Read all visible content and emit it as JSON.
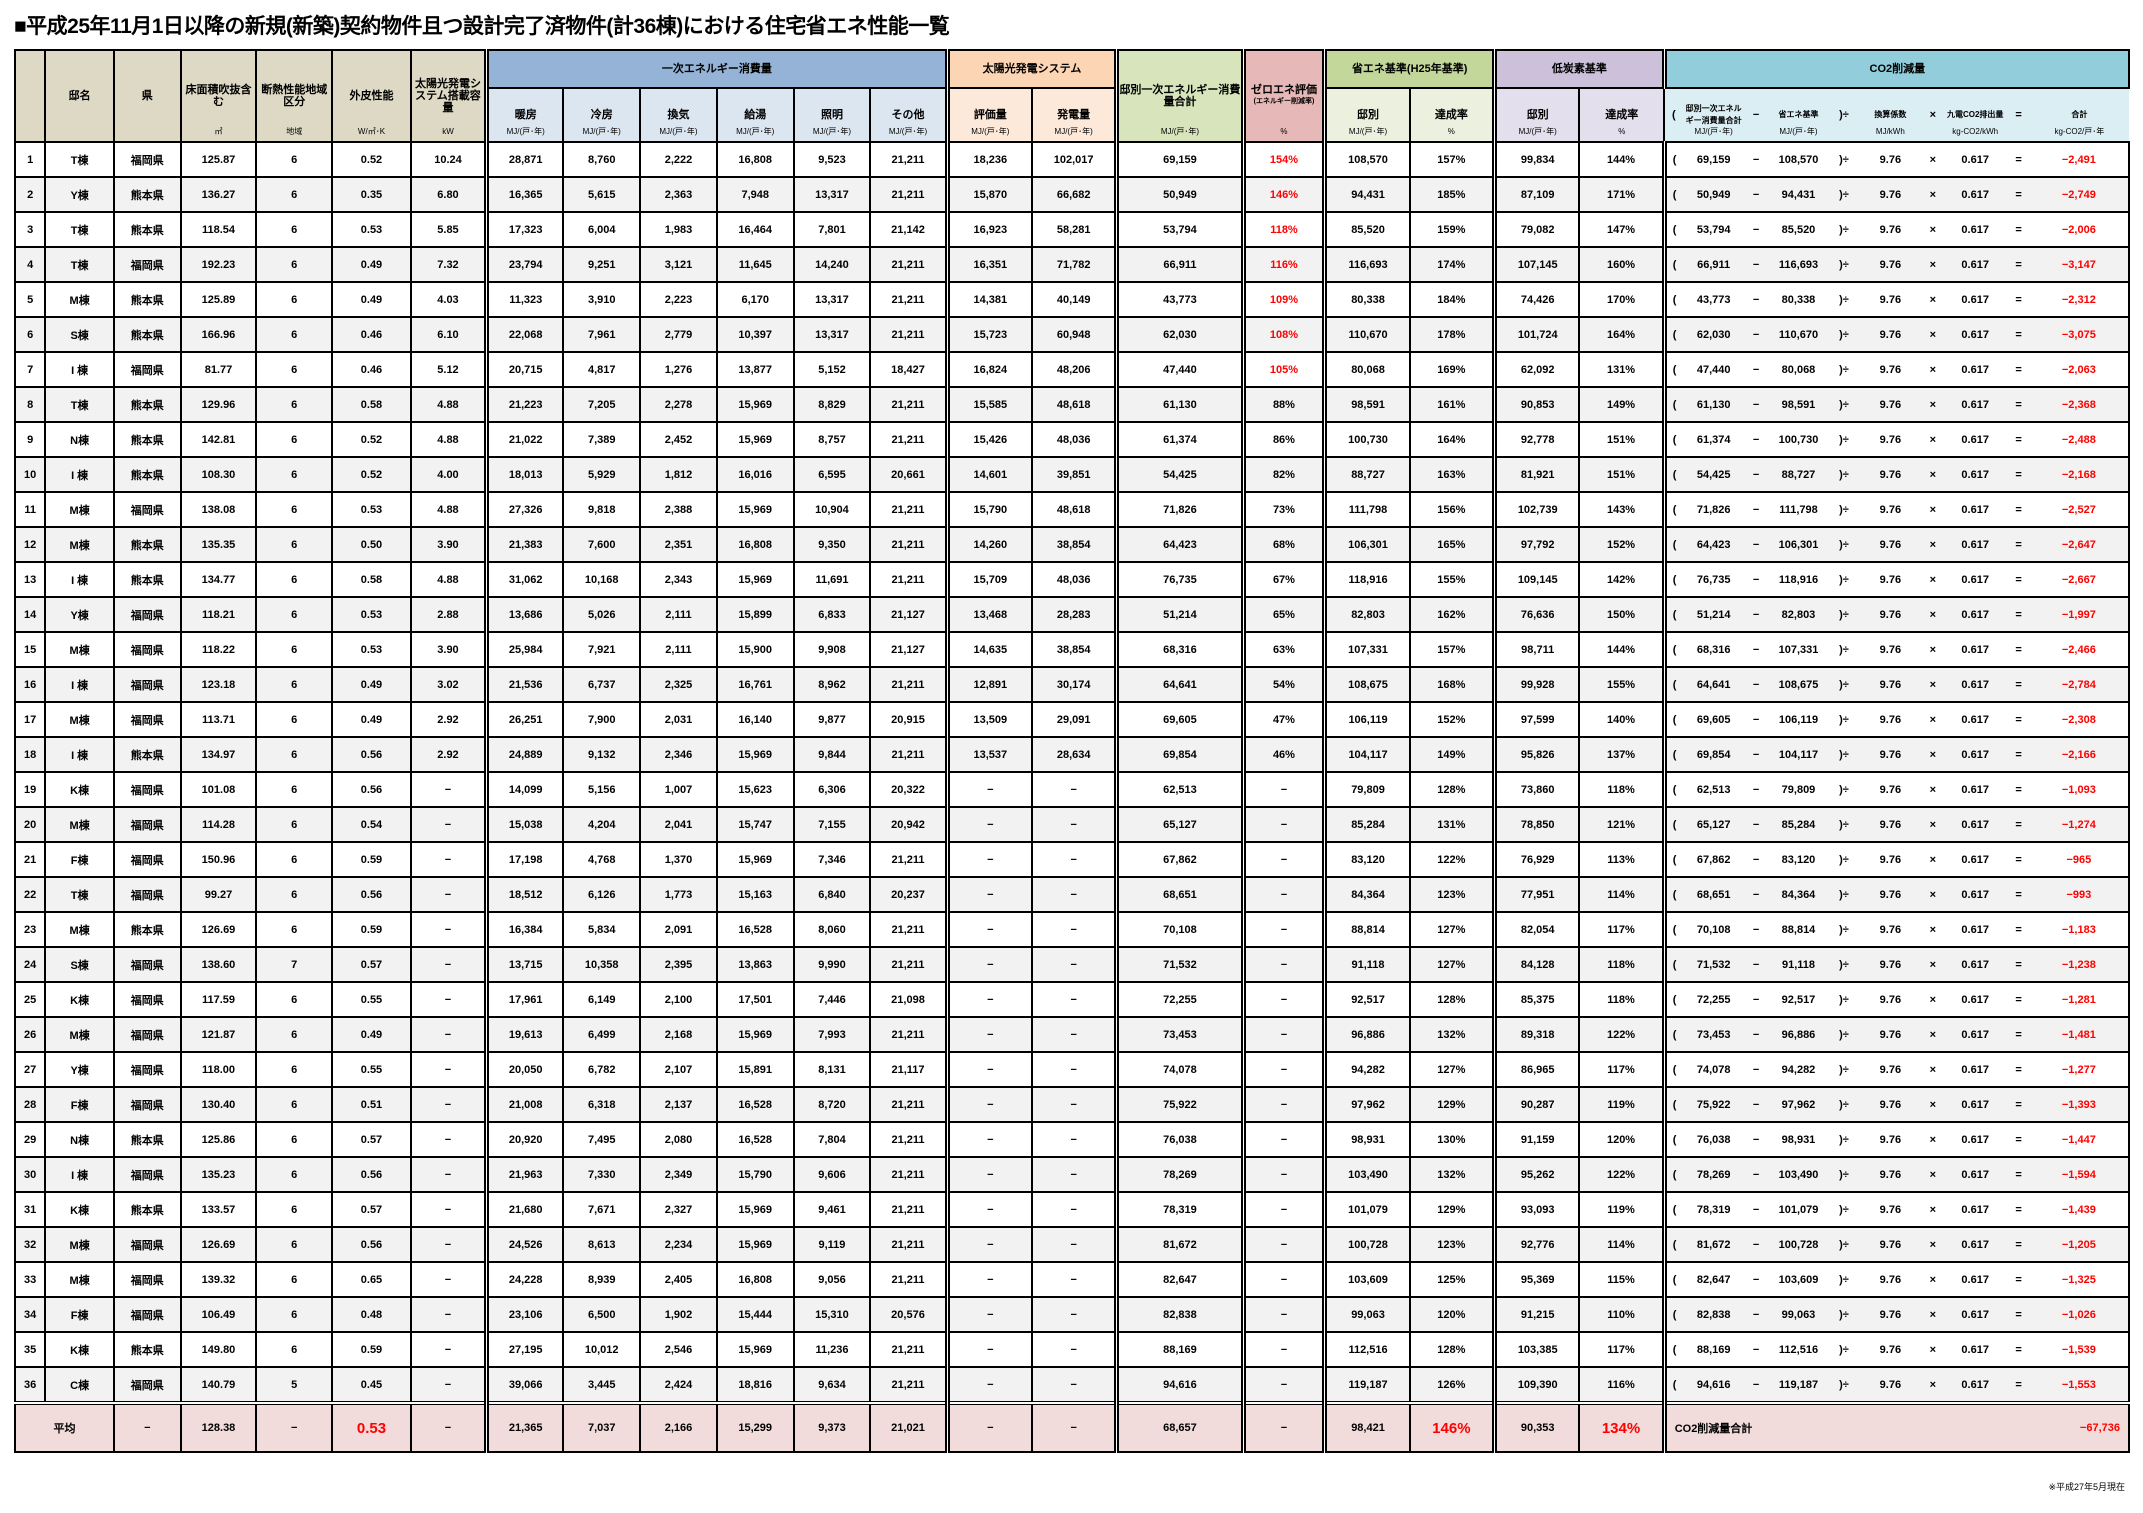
{
  "title": "■平成25年11月1日以降の新規(新築)契約物件且つ設計完了済物件(計36棟)における住宅省エネ性能一覧",
  "colors": {
    "accent_red": "#ff0000",
    "primary_energy": "#95b3d7",
    "solar": "#fcd5b4",
    "total": "#d8e4bc",
    "zero_energy": "#e6b8b7",
    "energy_standard": "#c4d79b",
    "low_carbon": "#ccc0da",
    "co2": "#92cddc",
    "average_row": "#f2dcdb"
  },
  "headers": {
    "no": "",
    "name": "邸名",
    "pref": "県",
    "area": {
      "label": "床面積吹抜含む",
      "unit": "㎡"
    },
    "zone": {
      "label": "断熱性能地域区分",
      "unit": "地域"
    },
    "ua": {
      "label": "外皮性能",
      "unit": "W/㎡･K"
    },
    "pv": {
      "label": "太陽光発電システム搭載容量",
      "unit": "kW"
    },
    "primary": {
      "label": "一次エネルギー消費量",
      "cols": [
        {
          "label": "暖房",
          "unit": "MJ/(戸･年)"
        },
        {
          "label": "冷房",
          "unit": "MJ/(戸･年)"
        },
        {
          "label": "換気",
          "unit": "MJ/(戸･年)"
        },
        {
          "label": "給湯",
          "unit": "MJ/(戸･年)"
        },
        {
          "label": "照明",
          "unit": "MJ/(戸･年)"
        },
        {
          "label": "その他",
          "unit": "MJ/(戸･年)"
        }
      ]
    },
    "solar": {
      "label": "太陽光発電システム",
      "cols": [
        {
          "label": "評価量",
          "unit": "MJ/(戸･年)"
        },
        {
          "label": "発電量",
          "unit": "MJ/(戸･年)"
        }
      ]
    },
    "total": {
      "label": "邸別一次エネルギー消費量合計",
      "unit": "MJ/(戸･年)"
    },
    "zero": {
      "label": "ゼロエネ評価",
      "sub": "(エネルギー削減率)",
      "unit": "%"
    },
    "std": {
      "label": "省エネ基準(H25年基準)",
      "cols": [
        {
          "label": "邸別",
          "unit": "MJ/(戸･年)"
        },
        {
          "label": "達成率",
          "unit": "%"
        }
      ]
    },
    "low": {
      "label": "低炭素基準",
      "cols": [
        {
          "label": "邸別",
          "unit": "MJ/(戸･年)"
        },
        {
          "label": "達成率",
          "unit": "%"
        }
      ]
    },
    "co2": {
      "label": "CO2削減量",
      "cols": [
        {
          "label": "邸別一次エネルギー消費量合計",
          "unit": "MJ/(戸･年)"
        },
        {
          "label": "省エネ基準",
          "unit": "MJ/(戸･年)"
        },
        {
          "label": "換算係数",
          "unit": "MJ/kWh"
        },
        {
          "label": "九電CO2排出量",
          "unit": "kg-CO2/kWh"
        },
        {
          "label": "合計",
          "unit": "kg-CO2/戸･年"
        }
      ]
    }
  },
  "co2_formula": {
    "open": "(",
    "minus": "−",
    "close_div": ")÷",
    "factor": "9.76",
    "times": "×",
    "emission": "0.617",
    "equals": "="
  },
  "rows": [
    [
      "1",
      "T棟",
      "福岡県",
      "125.87",
      "6",
      "0.52",
      "10.24",
      "28,871",
      "8,760",
      "2,222",
      "16,808",
      "9,523",
      "21,211",
      "18,236",
      "102,017",
      "69,159",
      "154%",
      "108,570",
      "157%",
      "99,834",
      "144%",
      "−2,491"
    ],
    [
      "2",
      "Y棟",
      "熊本県",
      "136.27",
      "6",
      "0.35",
      "6.80",
      "16,365",
      "5,615",
      "2,363",
      "7,948",
      "13,317",
      "21,211",
      "15,870",
      "66,682",
      "50,949",
      "146%",
      "94,431",
      "185%",
      "87,109",
      "171%",
      "−2,749"
    ],
    [
      "3",
      "T棟",
      "熊本県",
      "118.54",
      "6",
      "0.53",
      "5.85",
      "17,323",
      "6,004",
      "1,983",
      "16,464",
      "7,801",
      "21,142",
      "16,923",
      "58,281",
      "53,794",
      "118%",
      "85,520",
      "159%",
      "79,082",
      "147%",
      "−2,006"
    ],
    [
      "4",
      "T棟",
      "福岡県",
      "192.23",
      "6",
      "0.49",
      "7.32",
      "23,794",
      "9,251",
      "3,121",
      "11,645",
      "14,240",
      "21,211",
      "16,351",
      "71,782",
      "66,911",
      "116%",
      "116,693",
      "174%",
      "107,145",
      "160%",
      "−3,147"
    ],
    [
      "5",
      "M棟",
      "熊本県",
      "125.89",
      "6",
      "0.49",
      "4.03",
      "11,323",
      "3,910",
      "2,223",
      "6,170",
      "13,317",
      "21,211",
      "14,381",
      "40,149",
      "43,773",
      "109%",
      "80,338",
      "184%",
      "74,426",
      "170%",
      "−2,312"
    ],
    [
      "6",
      "S棟",
      "熊本県",
      "166.96",
      "6",
      "0.46",
      "6.10",
      "22,068",
      "7,961",
      "2,779",
      "10,397",
      "13,317",
      "21,211",
      "15,723",
      "60,948",
      "62,030",
      "108%",
      "110,670",
      "178%",
      "101,724",
      "164%",
      "−3,075"
    ],
    [
      "7",
      "I 棟",
      "福岡県",
      "81.77",
      "6",
      "0.46",
      "5.12",
      "20,715",
      "4,817",
      "1,276",
      "13,877",
      "5,152",
      "18,427",
      "16,824",
      "48,206",
      "47,440",
      "105%",
      "80,068",
      "169%",
      "62,092",
      "131%",
      "−2,063"
    ],
    [
      "8",
      "T棟",
      "熊本県",
      "129.96",
      "6",
      "0.58",
      "4.88",
      "21,223",
      "7,205",
      "2,278",
      "15,969",
      "8,829",
      "21,211",
      "15,585",
      "48,618",
      "61,130",
      "88%",
      "98,591",
      "161%",
      "90,853",
      "149%",
      "−2,368"
    ],
    [
      "9",
      "N棟",
      "熊本県",
      "142.81",
      "6",
      "0.52",
      "4.88",
      "21,022",
      "7,389",
      "2,452",
      "15,969",
      "8,757",
      "21,211",
      "15,426",
      "48,036",
      "61,374",
      "86%",
      "100,730",
      "164%",
      "92,778",
      "151%",
      "−2,488"
    ],
    [
      "10",
      "I 棟",
      "熊本県",
      "108.30",
      "6",
      "0.52",
      "4.00",
      "18,013",
      "5,929",
      "1,812",
      "16,016",
      "6,595",
      "20,661",
      "14,601",
      "39,851",
      "54,425",
      "82%",
      "88,727",
      "163%",
      "81,921",
      "151%",
      "−2,168"
    ],
    [
      "11",
      "M棟",
      "福岡県",
      "138.08",
      "6",
      "0.53",
      "4.88",
      "27,326",
      "9,818",
      "2,388",
      "15,969",
      "10,904",
      "21,211",
      "15,790",
      "48,618",
      "71,826",
      "73%",
      "111,798",
      "156%",
      "102,739",
      "143%",
      "−2,527"
    ],
    [
      "12",
      "M棟",
      "熊本県",
      "135.35",
      "6",
      "0.50",
      "3.90",
      "21,383",
      "7,600",
      "2,351",
      "16,808",
      "9,350",
      "21,211",
      "14,260",
      "38,854",
      "64,423",
      "68%",
      "106,301",
      "165%",
      "97,792",
      "152%",
      "−2,647"
    ],
    [
      "13",
      "I 棟",
      "熊本県",
      "134.77",
      "6",
      "0.58",
      "4.88",
      "31,062",
      "10,168",
      "2,343",
      "15,969",
      "11,691",
      "21,211",
      "15,709",
      "48,036",
      "76,735",
      "67%",
      "118,916",
      "155%",
      "109,145",
      "142%",
      "−2,667"
    ],
    [
      "14",
      "Y棟",
      "福岡県",
      "118.21",
      "6",
      "0.53",
      "2.88",
      "13,686",
      "5,026",
      "2,111",
      "15,899",
      "6,833",
      "21,127",
      "13,468",
      "28,283",
      "51,214",
      "65%",
      "82,803",
      "162%",
      "76,636",
      "150%",
      "−1,997"
    ],
    [
      "15",
      "M棟",
      "福岡県",
      "118.22",
      "6",
      "0.53",
      "3.90",
      "25,984",
      "7,921",
      "2,111",
      "15,900",
      "9,908",
      "21,127",
      "14,635",
      "38,854",
      "68,316",
      "63%",
      "107,331",
      "157%",
      "98,711",
      "144%",
      "−2,466"
    ],
    [
      "16",
      "I 棟",
      "福岡県",
      "123.18",
      "6",
      "0.49",
      "3.02",
      "21,536",
      "6,737",
      "2,325",
      "16,761",
      "8,962",
      "21,211",
      "12,891",
      "30,174",
      "64,641",
      "54%",
      "108,675",
      "168%",
      "99,928",
      "155%",
      "−2,784"
    ],
    [
      "17",
      "M棟",
      "福岡県",
      "113.71",
      "6",
      "0.49",
      "2.92",
      "26,251",
      "7,900",
      "2,031",
      "16,140",
      "9,877",
      "20,915",
      "13,509",
      "29,091",
      "69,605",
      "47%",
      "106,119",
      "152%",
      "97,599",
      "140%",
      "−2,308"
    ],
    [
      "18",
      "I 棟",
      "熊本県",
      "134.97",
      "6",
      "0.56",
      "2.92",
      "24,889",
      "9,132",
      "2,346",
      "15,969",
      "9,844",
      "21,211",
      "13,537",
      "28,634",
      "69,854",
      "46%",
      "104,117",
      "149%",
      "95,826",
      "137%",
      "−2,166"
    ],
    [
      "19",
      "K棟",
      "福岡県",
      "101.08",
      "6",
      "0.56",
      "−",
      "14,099",
      "5,156",
      "1,007",
      "15,623",
      "6,306",
      "20,322",
      "−",
      "−",
      "62,513",
      "−",
      "79,809",
      "128%",
      "73,860",
      "118%",
      "−1,093"
    ],
    [
      "20",
      "M棟",
      "福岡県",
      "114.28",
      "6",
      "0.54",
      "−",
      "15,038",
      "4,204",
      "2,041",
      "15,747",
      "7,155",
      "20,942",
      "−",
      "−",
      "65,127",
      "−",
      "85,284",
      "131%",
      "78,850",
      "121%",
      "−1,274"
    ],
    [
      "21",
      "F棟",
      "福岡県",
      "150.96",
      "6",
      "0.59",
      "−",
      "17,198",
      "4,768",
      "1,370",
      "15,969",
      "7,346",
      "21,211",
      "−",
      "−",
      "67,862",
      "−",
      "83,120",
      "122%",
      "76,929",
      "113%",
      "−965"
    ],
    [
      "22",
      "T棟",
      "福岡県",
      "99.27",
      "6",
      "0.56",
      "−",
      "18,512",
      "6,126",
      "1,773",
      "15,163",
      "6,840",
      "20,237",
      "−",
      "−",
      "68,651",
      "−",
      "84,364",
      "123%",
      "77,951",
      "114%",
      "−993"
    ],
    [
      "23",
      "M棟",
      "熊本県",
      "126.69",
      "6",
      "0.59",
      "−",
      "16,384",
      "5,834",
      "2,091",
      "16,528",
      "8,060",
      "21,211",
      "−",
      "−",
      "70,108",
      "−",
      "88,814",
      "127%",
      "82,054",
      "117%",
      "−1,183"
    ],
    [
      "24",
      "S棟",
      "福岡県",
      "138.60",
      "7",
      "0.57",
      "−",
      "13,715",
      "10,358",
      "2,395",
      "13,863",
      "9,990",
      "21,211",
      "−",
      "−",
      "71,532",
      "−",
      "91,118",
      "127%",
      "84,128",
      "118%",
      "−1,238"
    ],
    [
      "25",
      "K棟",
      "福岡県",
      "117.59",
      "6",
      "0.55",
      "−",
      "17,961",
      "6,149",
      "2,100",
      "17,501",
      "7,446",
      "21,098",
      "−",
      "−",
      "72,255",
      "−",
      "92,517",
      "128%",
      "85,375",
      "118%",
      "−1,281"
    ],
    [
      "26",
      "M棟",
      "福岡県",
      "121.87",
      "6",
      "0.49",
      "−",
      "19,613",
      "6,499",
      "2,168",
      "15,969",
      "7,993",
      "21,211",
      "−",
      "−",
      "73,453",
      "−",
      "96,886",
      "132%",
      "89,318",
      "122%",
      "−1,481"
    ],
    [
      "27",
      "Y棟",
      "福岡県",
      "118.00",
      "6",
      "0.55",
      "−",
      "20,050",
      "6,782",
      "2,107",
      "15,891",
      "8,131",
      "21,117",
      "−",
      "−",
      "74,078",
      "−",
      "94,282",
      "127%",
      "86,965",
      "117%",
      "−1,277"
    ],
    [
      "28",
      "F棟",
      "福岡県",
      "130.40",
      "6",
      "0.51",
      "−",
      "21,008",
      "6,318",
      "2,137",
      "16,528",
      "8,720",
      "21,211",
      "−",
      "−",
      "75,922",
      "−",
      "97,962",
      "129%",
      "90,287",
      "119%",
      "−1,393"
    ],
    [
      "29",
      "N棟",
      "熊本県",
      "125.86",
      "6",
      "0.57",
      "−",
      "20,920",
      "7,495",
      "2,080",
      "16,528",
      "7,804",
      "21,211",
      "−",
      "−",
      "76,038",
      "−",
      "98,931",
      "130%",
      "91,159",
      "120%",
      "−1,447"
    ],
    [
      "30",
      "I 棟",
      "福岡県",
      "135.23",
      "6",
      "0.56",
      "−",
      "21,963",
      "7,330",
      "2,349",
      "15,790",
      "9,606",
      "21,211",
      "−",
      "−",
      "78,269",
      "−",
      "103,490",
      "132%",
      "95,262",
      "122%",
      "−1,594"
    ],
    [
      "31",
      "K棟",
      "熊本県",
      "133.57",
      "6",
      "0.57",
      "−",
      "21,680",
      "7,671",
      "2,327",
      "15,969",
      "9,461",
      "21,211",
      "−",
      "−",
      "78,319",
      "−",
      "101,079",
      "129%",
      "93,093",
      "119%",
      "−1,439"
    ],
    [
      "32",
      "M棟",
      "福岡県",
      "126.69",
      "6",
      "0.56",
      "−",
      "24,526",
      "8,613",
      "2,234",
      "15,969",
      "9,119",
      "21,211",
      "−",
      "−",
      "81,672",
      "−",
      "100,728",
      "123%",
      "92,776",
      "114%",
      "−1,205"
    ],
    [
      "33",
      "M棟",
      "福岡県",
      "139.32",
      "6",
      "0.65",
      "−",
      "24,228",
      "8,939",
      "2,405",
      "16,808",
      "9,056",
      "21,211",
      "−",
      "−",
      "82,647",
      "−",
      "103,609",
      "125%",
      "95,369",
      "115%",
      "−1,325"
    ],
    [
      "34",
      "F棟",
      "福岡県",
      "106.49",
      "6",
      "0.48",
      "−",
      "23,106",
      "6,500",
      "1,902",
      "15,444",
      "15,310",
      "20,576",
      "−",
      "−",
      "82,838",
      "−",
      "99,063",
      "120%",
      "91,215",
      "110%",
      "−1,026"
    ],
    [
      "35",
      "K棟",
      "熊本県",
      "149.80",
      "6",
      "0.59",
      "−",
      "27,195",
      "10,012",
      "2,546",
      "15,969",
      "11,236",
      "21,211",
      "−",
      "−",
      "88,169",
      "−",
      "112,516",
      "128%",
      "103,385",
      "117%",
      "−1,539"
    ],
    [
      "36",
      "C棟",
      "福岡県",
      "140.79",
      "5",
      "0.45",
      "−",
      "39,066",
      "3,445",
      "2,424",
      "18,816",
      "9,634",
      "21,211",
      "−",
      "−",
      "94,616",
      "−",
      "119,187",
      "126%",
      "109,390",
      "116%",
      "−1,553"
    ]
  ],
  "average": {
    "label": "平均",
    "values": [
      "−",
      "128.38",
      "−",
      "0.53",
      "−",
      "21,365",
      "7,037",
      "2,166",
      "15,299",
      "9,373",
      "21,021",
      "−",
      "−",
      "68,657",
      "−",
      "98,421",
      "146%",
      "90,353",
      "134%"
    ],
    "co2_total_label": "CO2削減量合計",
    "co2_total": "−67,736"
  },
  "note": "※平成27年5月現在"
}
